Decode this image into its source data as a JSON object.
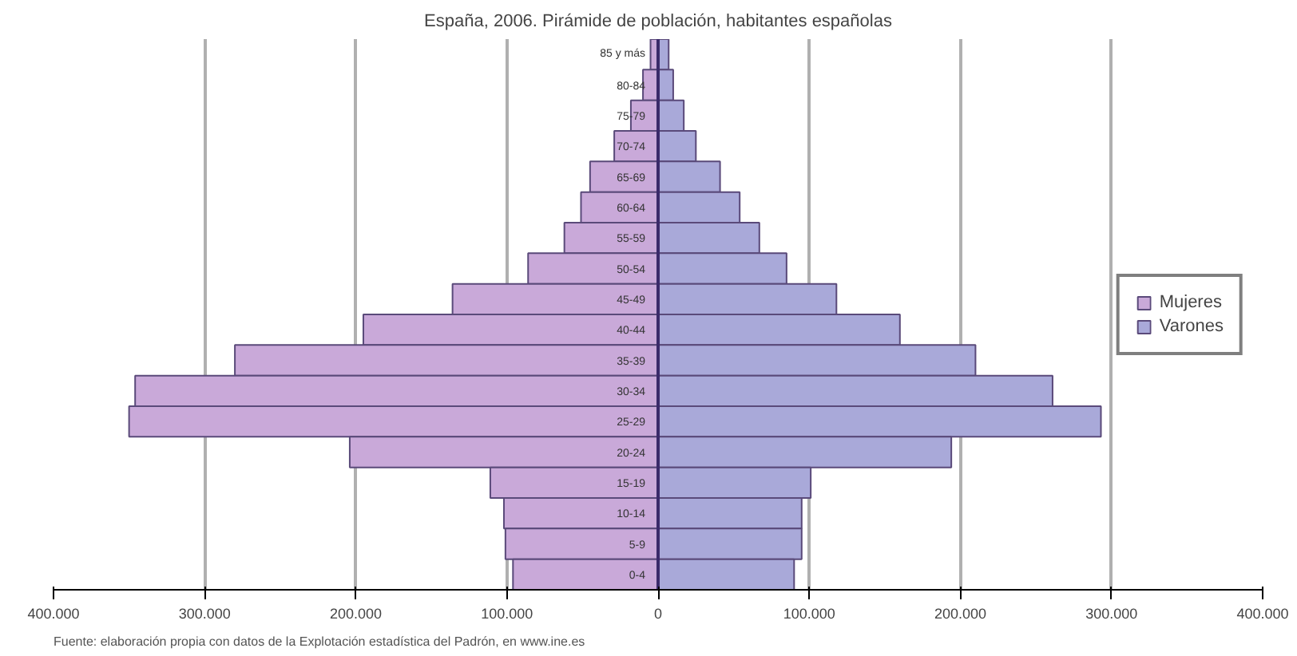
{
  "chart_data": {
    "type": "bar",
    "orientation": "horizontal",
    "stacked": true,
    "title": "España, 2006. Pirámide de población, habitantes españolas",
    "categories": [
      "85 y más",
      "80-84",
      "75-79",
      "70-74",
      "65-69",
      "60-64",
      "55-59",
      "50-54",
      "45-49",
      "40-44",
      "35-39",
      "30-34",
      "25-29",
      "20-24",
      "15-19",
      "10-14",
      "5-9",
      "0-4"
    ],
    "series": [
      {
        "name": "Mujeres",
        "color": "#c9a9d9",
        "values": [
          -5000,
          -10000,
          -18000,
          -29000,
          -45000,
          -51000,
          -62000,
          -86000,
          -136000,
          -195000,
          -280000,
          -346000,
          -350000,
          -204000,
          -111000,
          -102000,
          -101000,
          -96000
        ]
      },
      {
        "name": "Varones",
        "color": "#a9a9d9",
        "values": [
          7000,
          10000,
          17000,
          25000,
          41000,
          54000,
          67000,
          85000,
          118000,
          160000,
          210000,
          261000,
          293000,
          194000,
          101000,
          95000,
          95000,
          90000
        ]
      }
    ],
    "xlim": [
      -400000,
      400000
    ],
    "xticks": [
      {
        "value": -400000,
        "label": "400.000"
      },
      {
        "value": -300000,
        "label": "300.000"
      },
      {
        "value": -200000,
        "label": "200.000"
      },
      {
        "value": -100000,
        "label": "100.000"
      },
      0,
      {
        "value": 100000,
        "label": "100.000"
      },
      {
        "value": 200000,
        "label": "200.000"
      },
      {
        "value": 300000,
        "label": "300.000"
      },
      {
        "value": 400000,
        "label": "400.000"
      }
    ],
    "grid": "x",
    "legend": "right",
    "annotations": [
      "Fuente: elaboración propia con datos de la Explotación estadística del Padrón, en www.ine.es"
    ]
  }
}
